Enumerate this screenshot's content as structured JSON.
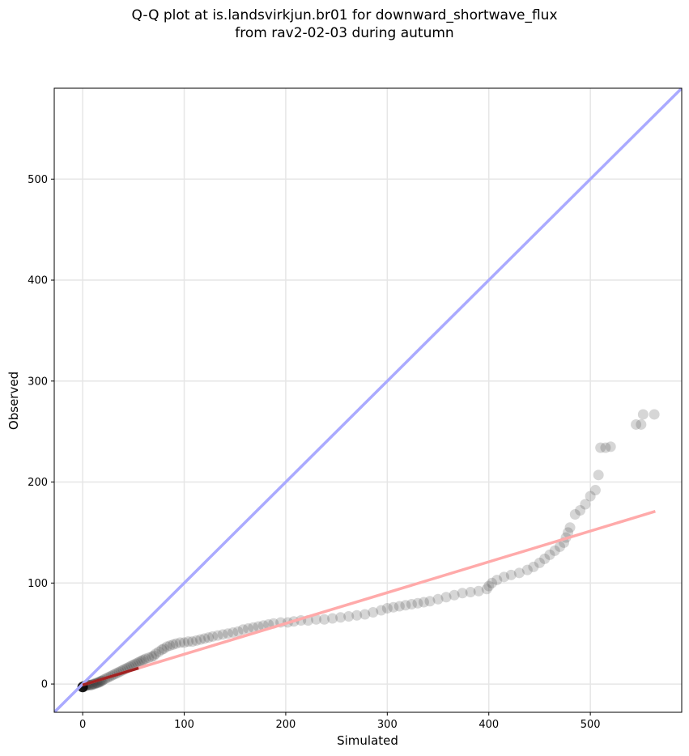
{
  "chart_data": {
    "type": "scatter",
    "title_line1": "Q-Q plot at is.landsvirkjun.br01 for downward_shortwave_flux",
    "title_line2": "from rav2-02-03 during autumn",
    "xlabel": "Simulated",
    "ylabel": "Observed",
    "xlim": [
      -28,
      590
    ],
    "ylim": [
      -28,
      590
    ],
    "xticks": [
      0,
      100,
      200,
      300,
      400,
      500
    ],
    "yticks": [
      0,
      100,
      200,
      300,
      400,
      500
    ],
    "grid": true,
    "colors": {
      "points": "#333333",
      "identity_line": "#aaaaff",
      "fit_line": "#ffaaaa",
      "fit_line_dark": "#8b0000"
    },
    "identity_line": {
      "x": [
        -28,
        590
      ],
      "y": [
        -28,
        590
      ]
    },
    "fit_line": {
      "x": [
        0,
        564
      ],
      "y": [
        -1,
        171
      ]
    },
    "points": [
      [
        0,
        -3
      ],
      [
        1,
        -2
      ],
      [
        2,
        -2
      ],
      [
        3,
        -2
      ],
      [
        4,
        -1
      ],
      [
        5,
        -1
      ],
      [
        6,
        -1
      ],
      [
        7,
        -1
      ],
      [
        8,
        -1
      ],
      [
        9,
        -1
      ],
      [
        10,
        0
      ],
      [
        11,
        0
      ],
      [
        12,
        0
      ],
      [
        13,
        1
      ],
      [
        14,
        1
      ],
      [
        15,
        1
      ],
      [
        16,
        2
      ],
      [
        17,
        2
      ],
      [
        18,
        3
      ],
      [
        19,
        3
      ],
      [
        20,
        4
      ],
      [
        22,
        5
      ],
      [
        24,
        6
      ],
      [
        26,
        7
      ],
      [
        28,
        8
      ],
      [
        30,
        9
      ],
      [
        32,
        10
      ],
      [
        34,
        11
      ],
      [
        36,
        12
      ],
      [
        38,
        13
      ],
      [
        40,
        14
      ],
      [
        42,
        15
      ],
      [
        44,
        16
      ],
      [
        46,
        17
      ],
      [
        48,
        18
      ],
      [
        50,
        19
      ],
      [
        52,
        20
      ],
      [
        54,
        21
      ],
      [
        56,
        22
      ],
      [
        58,
        23
      ],
      [
        60,
        24
      ],
      [
        62,
        25
      ],
      [
        65,
        26
      ],
      [
        68,
        27
      ],
      [
        70,
        28
      ],
      [
        72,
        30
      ],
      [
        75,
        32
      ],
      [
        78,
        34
      ],
      [
        80,
        35
      ],
      [
        83,
        37
      ],
      [
        86,
        38
      ],
      [
        89,
        39
      ],
      [
        92,
        40
      ],
      [
        96,
        41
      ],
      [
        100,
        41
      ],
      [
        104,
        42
      ],
      [
        108,
        42
      ],
      [
        112,
        43
      ],
      [
        116,
        44
      ],
      [
        120,
        45
      ],
      [
        124,
        46
      ],
      [
        128,
        47
      ],
      [
        133,
        48
      ],
      [
        138,
        49
      ],
      [
        143,
        50
      ],
      [
        148,
        51
      ],
      [
        153,
        52
      ],
      [
        158,
        54
      ],
      [
        163,
        55
      ],
      [
        168,
        56
      ],
      [
        173,
        57
      ],
      [
        178,
        58
      ],
      [
        183,
        59
      ],
      [
        188,
        60
      ],
      [
        195,
        61
      ],
      [
        202,
        61
      ],
      [
        208,
        62
      ],
      [
        215,
        63
      ],
      [
        222,
        63
      ],
      [
        230,
        64
      ],
      [
        238,
        64
      ],
      [
        246,
        65
      ],
      [
        254,
        66
      ],
      [
        262,
        67
      ],
      [
        270,
        68
      ],
      [
        278,
        69
      ],
      [
        286,
        71
      ],
      [
        294,
        73
      ],
      [
        300,
        75
      ],
      [
        306,
        76
      ],
      [
        312,
        77
      ],
      [
        318,
        78
      ],
      [
        324,
        79
      ],
      [
        330,
        80
      ],
      [
        336,
        81
      ],
      [
        342,
        82
      ],
      [
        350,
        84
      ],
      [
        358,
        86
      ],
      [
        366,
        88
      ],
      [
        374,
        90
      ],
      [
        382,
        91
      ],
      [
        390,
        92
      ],
      [
        398,
        94
      ],
      [
        400,
        97
      ],
      [
        403,
        100
      ],
      [
        408,
        103
      ],
      [
        415,
        106
      ],
      [
        422,
        108
      ],
      [
        430,
        110
      ],
      [
        438,
        113
      ],
      [
        444,
        116
      ],
      [
        450,
        120
      ],
      [
        455,
        124
      ],
      [
        460,
        128
      ],
      [
        465,
        132
      ],
      [
        470,
        136
      ],
      [
        474,
        140
      ],
      [
        476,
        145
      ],
      [
        478,
        150
      ],
      [
        480,
        155
      ],
      [
        485,
        168
      ],
      [
        490,
        172
      ],
      [
        495,
        178
      ],
      [
        500,
        186
      ],
      [
        505,
        192
      ],
      [
        508,
        207
      ],
      [
        510,
        234
      ],
      [
        515,
        234
      ],
      [
        520,
        235
      ],
      [
        545,
        257
      ],
      [
        550,
        257
      ],
      [
        552,
        267
      ],
      [
        563,
        267
      ]
    ]
  }
}
